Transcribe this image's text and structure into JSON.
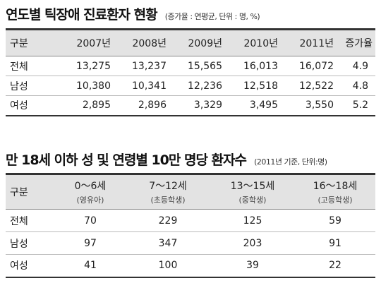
{
  "table1": {
    "title": "연도별 틱장애 진료환자 현황",
    "unit": "(증가율 : 연평균, 단위 : 명, %)",
    "headers": [
      "구분",
      "2007년",
      "2008년",
      "2009년",
      "2010년",
      "2011년",
      "증가율"
    ],
    "rows": [
      [
        "전체",
        "13,275",
        "13,237",
        "15,565",
        "16,013",
        "16,072",
        "4.9"
      ],
      [
        "남성",
        "10,380",
        "10,341",
        "12,236",
        "12,518",
        "12,522",
        "4.8"
      ],
      [
        "여성",
        "2,895",
        "2,896",
        "3,329",
        "3,495",
        "3,550",
        "5.2"
      ]
    ]
  },
  "table2": {
    "title": "만 18세 이하 성 및 연령별 10만 명당 환자수",
    "unit": "(2011년 기준, 단위:명)",
    "headers": [
      {
        "label": "구분",
        "sub": ""
      },
      {
        "label": "0～6세",
        "sub": "(영유아)"
      },
      {
        "label": "7～12세",
        "sub": "(초등학생)"
      },
      {
        "label": "13～15세",
        "sub": "(중학생)"
      },
      {
        "label": "16～18세",
        "sub": "(고등학생)"
      }
    ],
    "rows": [
      [
        "전체",
        "70",
        "229",
        "125",
        "59"
      ],
      [
        "남성",
        "97",
        "347",
        "203",
        "91"
      ],
      [
        "여성",
        "41",
        "100",
        "39",
        "22"
      ]
    ]
  }
}
